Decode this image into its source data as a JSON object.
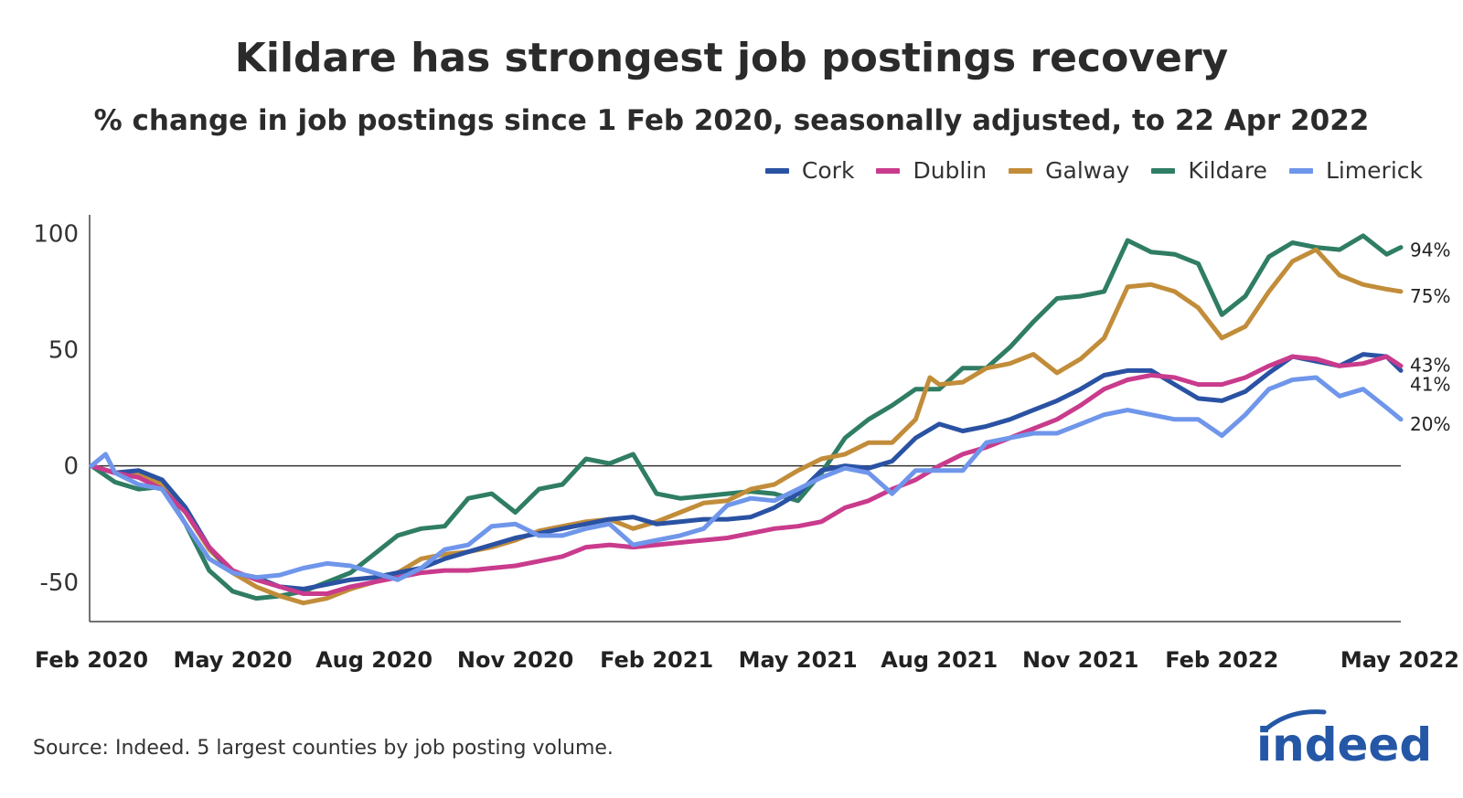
{
  "chart_data": {
    "type": "line",
    "title": "Kildare has strongest job postings recovery",
    "subtitle": "% change in job postings since 1 Feb 2020, seasonally adjusted, to 22 Apr 2022",
    "xlabel": "",
    "ylabel": "",
    "ylim": [
      -67,
      108
    ],
    "y_ticks": [
      100,
      50,
      0,
      -50
    ],
    "y_tick_labels": [
      "100",
      "50",
      "0",
      "-50"
    ],
    "x_ticks": [
      0,
      3,
      6,
      9,
      12,
      15,
      18,
      21,
      24,
      27
    ],
    "x_tick_labels": [
      "Feb 2020",
      "May 2020",
      "Aug 2020",
      "Nov 2020",
      "Feb 2021",
      "May 2021",
      "Aug 2021",
      "Nov 2021",
      "Feb 2022",
      "May 2022"
    ],
    "x_unit": "months since Feb 2020",
    "legend_position": "top-right",
    "series": [
      {
        "name": "Cork",
        "color": "#2a52a3",
        "end_label": "41%",
        "points": [
          [
            0,
            0
          ],
          [
            0.5,
            -3
          ],
          [
            1,
            -2
          ],
          [
            1.5,
            -6
          ],
          [
            2,
            -18
          ],
          [
            2.5,
            -35
          ],
          [
            3,
            -46
          ],
          [
            3.5,
            -48
          ],
          [
            4,
            -52
          ],
          [
            4.5,
            -53
          ],
          [
            5,
            -51
          ],
          [
            5.5,
            -49
          ],
          [
            6,
            -48
          ],
          [
            6.5,
            -46
          ],
          [
            7,
            -44
          ],
          [
            7.5,
            -40
          ],
          [
            8,
            -37
          ],
          [
            8.5,
            -34
          ],
          [
            9,
            -31
          ],
          [
            9.5,
            -29
          ],
          [
            10,
            -27
          ],
          [
            10.5,
            -25
          ],
          [
            11,
            -23
          ],
          [
            11.5,
            -22
          ],
          [
            12,
            -25
          ],
          [
            12.5,
            -24
          ],
          [
            13,
            -23
          ],
          [
            13.5,
            -23
          ],
          [
            14,
            -22
          ],
          [
            14.5,
            -18
          ],
          [
            15,
            -12
          ],
          [
            15.5,
            -2
          ],
          [
            16,
            0
          ],
          [
            16.5,
            -1
          ],
          [
            17,
            2
          ],
          [
            17.5,
            12
          ],
          [
            18,
            18
          ],
          [
            18.5,
            15
          ],
          [
            19,
            17
          ],
          [
            19.5,
            20
          ],
          [
            20,
            24
          ],
          [
            20.5,
            28
          ],
          [
            21,
            33
          ],
          [
            21.5,
            39
          ],
          [
            22,
            41
          ],
          [
            22.5,
            41
          ],
          [
            23,
            35
          ],
          [
            23.5,
            29
          ],
          [
            24,
            28
          ],
          [
            24.5,
            32
          ],
          [
            25,
            40
          ],
          [
            25.5,
            47
          ],
          [
            26,
            45
          ],
          [
            26.5,
            43
          ],
          [
            27,
            48
          ],
          [
            27.5,
            47
          ],
          [
            27.8,
            41
          ]
        ]
      },
      {
        "name": "Dublin",
        "color": "#c93b8c",
        "end_label": "43%",
        "points": [
          [
            0,
            0
          ],
          [
            0.5,
            -3
          ],
          [
            1,
            -5
          ],
          [
            1.5,
            -10
          ],
          [
            2,
            -20
          ],
          [
            2.5,
            -35
          ],
          [
            3,
            -45
          ],
          [
            3.5,
            -49
          ],
          [
            4,
            -52
          ],
          [
            4.5,
            -55
          ],
          [
            5,
            -55
          ],
          [
            5.5,
            -52
          ],
          [
            6,
            -50
          ],
          [
            6.5,
            -48
          ],
          [
            7,
            -46
          ],
          [
            7.5,
            -45
          ],
          [
            8,
            -45
          ],
          [
            8.5,
            -44
          ],
          [
            9,
            -43
          ],
          [
            9.5,
            -41
          ],
          [
            10,
            -39
          ],
          [
            10.5,
            -35
          ],
          [
            11,
            -34
          ],
          [
            11.5,
            -35
          ],
          [
            12,
            -34
          ],
          [
            12.5,
            -33
          ],
          [
            13,
            -32
          ],
          [
            13.5,
            -31
          ],
          [
            14,
            -29
          ],
          [
            14.5,
            -27
          ],
          [
            15,
            -26
          ],
          [
            15.5,
            -24
          ],
          [
            16,
            -18
          ],
          [
            16.5,
            -15
          ],
          [
            17,
            -10
          ],
          [
            17.5,
            -6
          ],
          [
            18,
            0
          ],
          [
            18.5,
            5
          ],
          [
            19,
            8
          ],
          [
            19.5,
            12
          ],
          [
            20,
            16
          ],
          [
            20.5,
            20
          ],
          [
            21,
            26
          ],
          [
            21.5,
            33
          ],
          [
            22,
            37
          ],
          [
            22.5,
            39
          ],
          [
            23,
            38
          ],
          [
            23.5,
            35
          ],
          [
            24,
            35
          ],
          [
            24.5,
            38
          ],
          [
            25,
            43
          ],
          [
            25.5,
            47
          ],
          [
            26,
            46
          ],
          [
            26.5,
            43
          ],
          [
            27,
            44
          ],
          [
            27.5,
            47
          ],
          [
            27.8,
            43
          ]
        ]
      },
      {
        "name": "Galway",
        "color": "#c28d3a",
        "end_label": "75%",
        "points": [
          [
            0,
            0
          ],
          [
            0.5,
            -3
          ],
          [
            1,
            -4
          ],
          [
            1.5,
            -8
          ],
          [
            2,
            -20
          ],
          [
            2.5,
            -36
          ],
          [
            3,
            -46
          ],
          [
            3.5,
            -52
          ],
          [
            4,
            -56
          ],
          [
            4.5,
            -59
          ],
          [
            5,
            -57
          ],
          [
            5.5,
            -53
          ],
          [
            6,
            -50
          ],
          [
            6.5,
            -46
          ],
          [
            7,
            -40
          ],
          [
            7.5,
            -38
          ],
          [
            8,
            -37
          ],
          [
            8.5,
            -35
          ],
          [
            9,
            -32
          ],
          [
            9.5,
            -28
          ],
          [
            10,
            -26
          ],
          [
            10.5,
            -24
          ],
          [
            11,
            -23
          ],
          [
            11.5,
            -27
          ],
          [
            12,
            -24
          ],
          [
            12.5,
            -20
          ],
          [
            13,
            -16
          ],
          [
            13.5,
            -15
          ],
          [
            14,
            -10
          ],
          [
            14.5,
            -8
          ],
          [
            15,
            -2
          ],
          [
            15.5,
            3
          ],
          [
            16,
            5
          ],
          [
            16.5,
            10
          ],
          [
            17,
            10
          ],
          [
            17.5,
            20
          ],
          [
            17.8,
            38
          ],
          [
            18,
            35
          ],
          [
            18.5,
            36
          ],
          [
            19,
            42
          ],
          [
            19.5,
            44
          ],
          [
            20,
            48
          ],
          [
            20.5,
            40
          ],
          [
            21,
            46
          ],
          [
            21.5,
            55
          ],
          [
            22,
            77
          ],
          [
            22.5,
            78
          ],
          [
            23,
            75
          ],
          [
            23.5,
            68
          ],
          [
            24,
            55
          ],
          [
            24.5,
            60
          ],
          [
            25,
            75
          ],
          [
            25.5,
            88
          ],
          [
            26,
            93
          ],
          [
            26.5,
            82
          ],
          [
            27,
            78
          ],
          [
            27.5,
            76
          ],
          [
            27.8,
            75
          ]
        ]
      },
      {
        "name": "Kildare",
        "color": "#2f7d64",
        "end_label": "94%",
        "points": [
          [
            0,
            0
          ],
          [
            0.5,
            -7
          ],
          [
            1,
            -10
          ],
          [
            1.5,
            -9
          ],
          [
            2,
            -25
          ],
          [
            2.5,
            -45
          ],
          [
            3,
            -54
          ],
          [
            3.5,
            -57
          ],
          [
            4,
            -56
          ],
          [
            4.5,
            -54
          ],
          [
            5,
            -50
          ],
          [
            5.5,
            -46
          ],
          [
            6,
            -38
          ],
          [
            6.5,
            -30
          ],
          [
            7,
            -27
          ],
          [
            7.5,
            -26
          ],
          [
            8,
            -14
          ],
          [
            8.5,
            -12
          ],
          [
            9,
            -20
          ],
          [
            9.5,
            -10
          ],
          [
            10,
            -8
          ],
          [
            10.5,
            3
          ],
          [
            11,
            1
          ],
          [
            11.5,
            5
          ],
          [
            12,
            -12
          ],
          [
            12.5,
            -14
          ],
          [
            13,
            -13
          ],
          [
            13.5,
            -12
          ],
          [
            14,
            -11
          ],
          [
            14.5,
            -12
          ],
          [
            15,
            -15
          ],
          [
            15.5,
            -3
          ],
          [
            16,
            12
          ],
          [
            16.5,
            20
          ],
          [
            17,
            26
          ],
          [
            17.5,
            33
          ],
          [
            18,
            33
          ],
          [
            18.5,
            42
          ],
          [
            19,
            42
          ],
          [
            19.5,
            51
          ],
          [
            20,
            62
          ],
          [
            20.5,
            72
          ],
          [
            21,
            73
          ],
          [
            21.5,
            75
          ],
          [
            22,
            97
          ],
          [
            22.5,
            92
          ],
          [
            23,
            91
          ],
          [
            23.5,
            87
          ],
          [
            24,
            65
          ],
          [
            24.5,
            73
          ],
          [
            25,
            90
          ],
          [
            25.5,
            96
          ],
          [
            26,
            94
          ],
          [
            26.5,
            93
          ],
          [
            27,
            99
          ],
          [
            27.5,
            91
          ],
          [
            27.8,
            94
          ]
        ]
      },
      {
        "name": "Limerick",
        "color": "#6f96ea",
        "end_label": "20%",
        "points": [
          [
            0,
            0
          ],
          [
            0.3,
            5
          ],
          [
            0.5,
            -3
          ],
          [
            1,
            -8
          ],
          [
            1.5,
            -10
          ],
          [
            2,
            -25
          ],
          [
            2.5,
            -40
          ],
          [
            3,
            -46
          ],
          [
            3.5,
            -48
          ],
          [
            4,
            -47
          ],
          [
            4.5,
            -44
          ],
          [
            5,
            -42
          ],
          [
            5.5,
            -43
          ],
          [
            6,
            -46
          ],
          [
            6.5,
            -49
          ],
          [
            7,
            -44
          ],
          [
            7.5,
            -36
          ],
          [
            8,
            -34
          ],
          [
            8.5,
            -26
          ],
          [
            9,
            -25
          ],
          [
            9.5,
            -30
          ],
          [
            10,
            -30
          ],
          [
            10.5,
            -27
          ],
          [
            11,
            -25
          ],
          [
            11.5,
            -34
          ],
          [
            12,
            -32
          ],
          [
            12.5,
            -30
          ],
          [
            13,
            -27
          ],
          [
            13.5,
            -17
          ],
          [
            14,
            -14
          ],
          [
            14.5,
            -15
          ],
          [
            15,
            -10
          ],
          [
            15.5,
            -5
          ],
          [
            16,
            -1
          ],
          [
            16.5,
            -3
          ],
          [
            17,
            -12
          ],
          [
            17.5,
            -2
          ],
          [
            18,
            -2
          ],
          [
            18.5,
            -2
          ],
          [
            19,
            10
          ],
          [
            19.5,
            12
          ],
          [
            20,
            14
          ],
          [
            20.5,
            14
          ],
          [
            21,
            18
          ],
          [
            21.5,
            22
          ],
          [
            22,
            24
          ],
          [
            22.5,
            22
          ],
          [
            23,
            20
          ],
          [
            23.5,
            20
          ],
          [
            24,
            13
          ],
          [
            24.5,
            22
          ],
          [
            25,
            33
          ],
          [
            25.5,
            37
          ],
          [
            26,
            38
          ],
          [
            26.5,
            30
          ],
          [
            27,
            33
          ],
          [
            27.5,
            25
          ],
          [
            27.8,
            20
          ]
        ]
      }
    ]
  },
  "footer": {
    "source": "Source: Indeed. 5 largest counties by job posting volume.",
    "logo_text": "indeed"
  }
}
